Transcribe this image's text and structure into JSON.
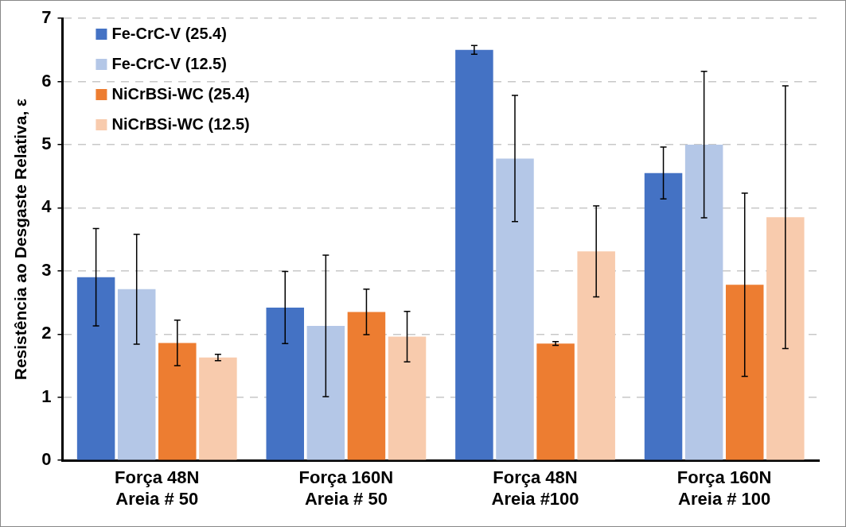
{
  "chart_data": {
    "type": "bar",
    "ylabel": "Resistência ao Desgaste Relativa, ε",
    "categories": [
      "Força 48N\nAreia # 50",
      "Força 160N\nAreia # 50",
      "Força 48N\nAreia #100",
      "Força 160N\nAreia # 100"
    ],
    "series": [
      {
        "name": "Fe-CrC-V (25.4)",
        "color": "#4472c4",
        "values": [
          2.9,
          2.42,
          6.5,
          4.55
        ],
        "errors": [
          0.77,
          0.57,
          0.07,
          0.41
        ]
      },
      {
        "name": "Fe-CrC-V (12.5)",
        "color": "#b4c7e7",
        "values": [
          2.71,
          2.13,
          4.78,
          5.0
        ],
        "errors": [
          0.87,
          1.12,
          1.0,
          1.16
        ]
      },
      {
        "name": "NiCrBSi-WC (25.4)",
        "color": "#ed7d31",
        "values": [
          1.86,
          2.35,
          1.85,
          2.78
        ],
        "errors": [
          0.36,
          0.36,
          0.03,
          1.45
        ]
      },
      {
        "name": "NiCrBSi-WC (12.5)",
        "color": "#f8cbad",
        "values": [
          1.63,
          1.96,
          3.31,
          3.85
        ],
        "errors": [
          0.05,
          0.4,
          0.72,
          2.08
        ]
      }
    ],
    "ylim": [
      0,
      7
    ],
    "yticks": [
      0,
      1,
      2,
      3,
      4,
      5,
      6,
      7
    ],
    "grid": "y",
    "legend": "top left"
  }
}
